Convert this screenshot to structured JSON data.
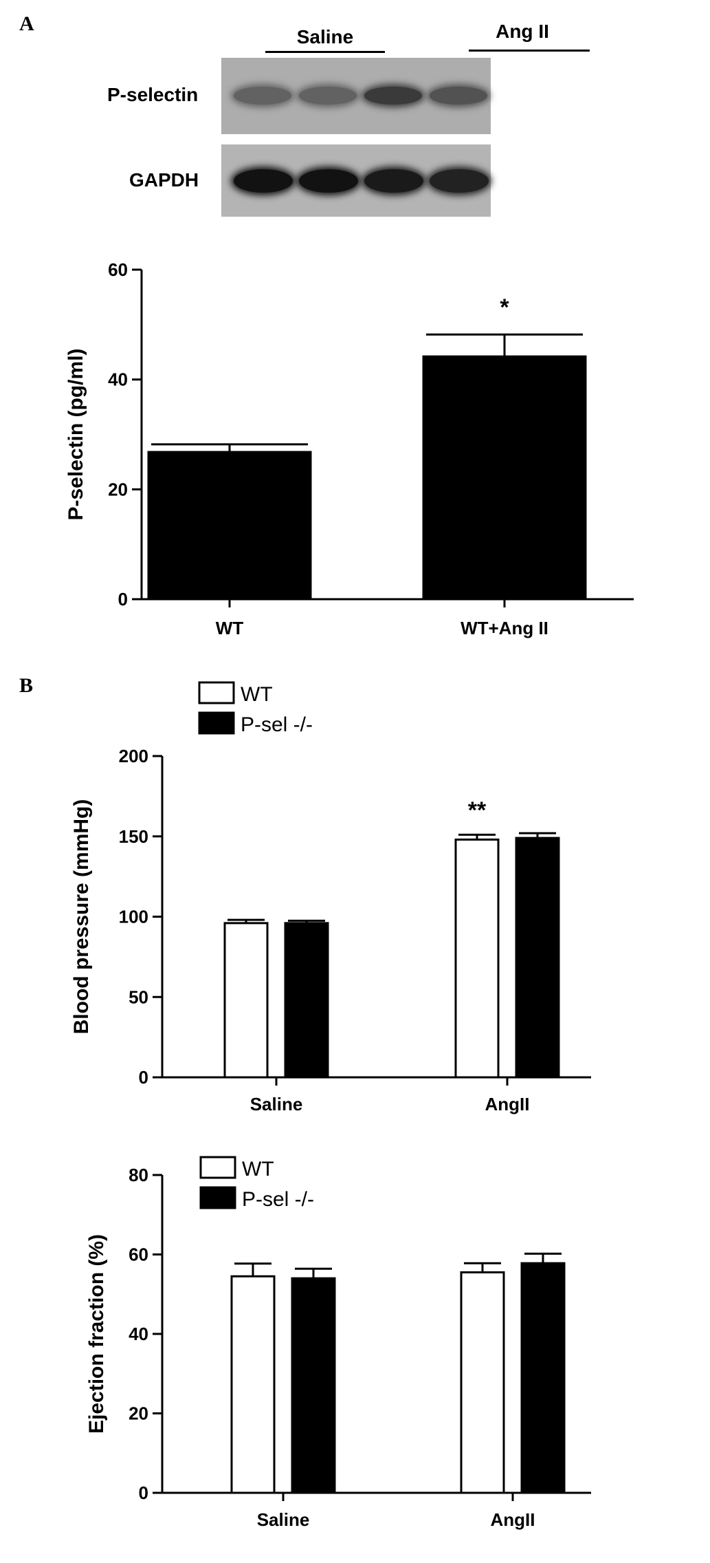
{
  "panel_a": {
    "label": "A"
  },
  "panel_b": {
    "label": "B"
  },
  "blot": {
    "groups": [
      "Saline",
      "Ang II"
    ],
    "rows": [
      "P-selectin",
      "GAPDH"
    ],
    "band_intensity": {
      "P-selectin": [
        0.45,
        0.45,
        0.7,
        0.55
      ],
      "GAPDH": [
        0.95,
        0.95,
        0.9,
        0.85
      ]
    }
  },
  "chart_data": [
    {
      "type": "bar",
      "ylabel": "P-selectin  (pg/ml)",
      "categories": [
        "WT",
        "WT+Ang II"
      ],
      "values": [
        26.8,
        44.2
      ],
      "errors": [
        1.4,
        4.0
      ],
      "significance": [
        "",
        "*"
      ],
      "ylim": [
        0,
        60
      ],
      "yticks": [
        0,
        20,
        40,
        60
      ],
      "colors": [
        "#000000"
      ]
    },
    {
      "type": "bar",
      "ylabel": "Blood pressure (mmHg)",
      "categories": [
        "Saline",
        "AngII"
      ],
      "series": [
        {
          "name": "WT",
          "values": [
            96,
            148
          ],
          "errors": [
            2,
            3
          ],
          "color": "#ffffff"
        },
        {
          "name": "P-sel -/-",
          "values": [
            96,
            149
          ],
          "errors": [
            1.5,
            3
          ],
          "color": "#000000"
        }
      ],
      "significance": [
        "",
        "**"
      ],
      "ylim": [
        0,
        200
      ],
      "yticks": [
        0,
        50,
        100,
        150,
        200
      ],
      "legend": "top-left"
    },
    {
      "type": "bar",
      "ylabel": "Ejection  fraction (%)",
      "categories": [
        "Saline",
        "AngII"
      ],
      "series": [
        {
          "name": "WT",
          "values": [
            54.5,
            55.5
          ],
          "errors": [
            3.2,
            2.3
          ],
          "color": "#ffffff"
        },
        {
          "name": "P-sel -/-",
          "values": [
            54,
            57.8
          ],
          "errors": [
            2.4,
            2.4
          ],
          "color": "#000000"
        }
      ],
      "significance": [
        "",
        ""
      ],
      "ylim": [
        0,
        80
      ],
      "yticks": [
        0,
        20,
        40,
        60,
        80
      ],
      "legend": "top-left"
    }
  ]
}
